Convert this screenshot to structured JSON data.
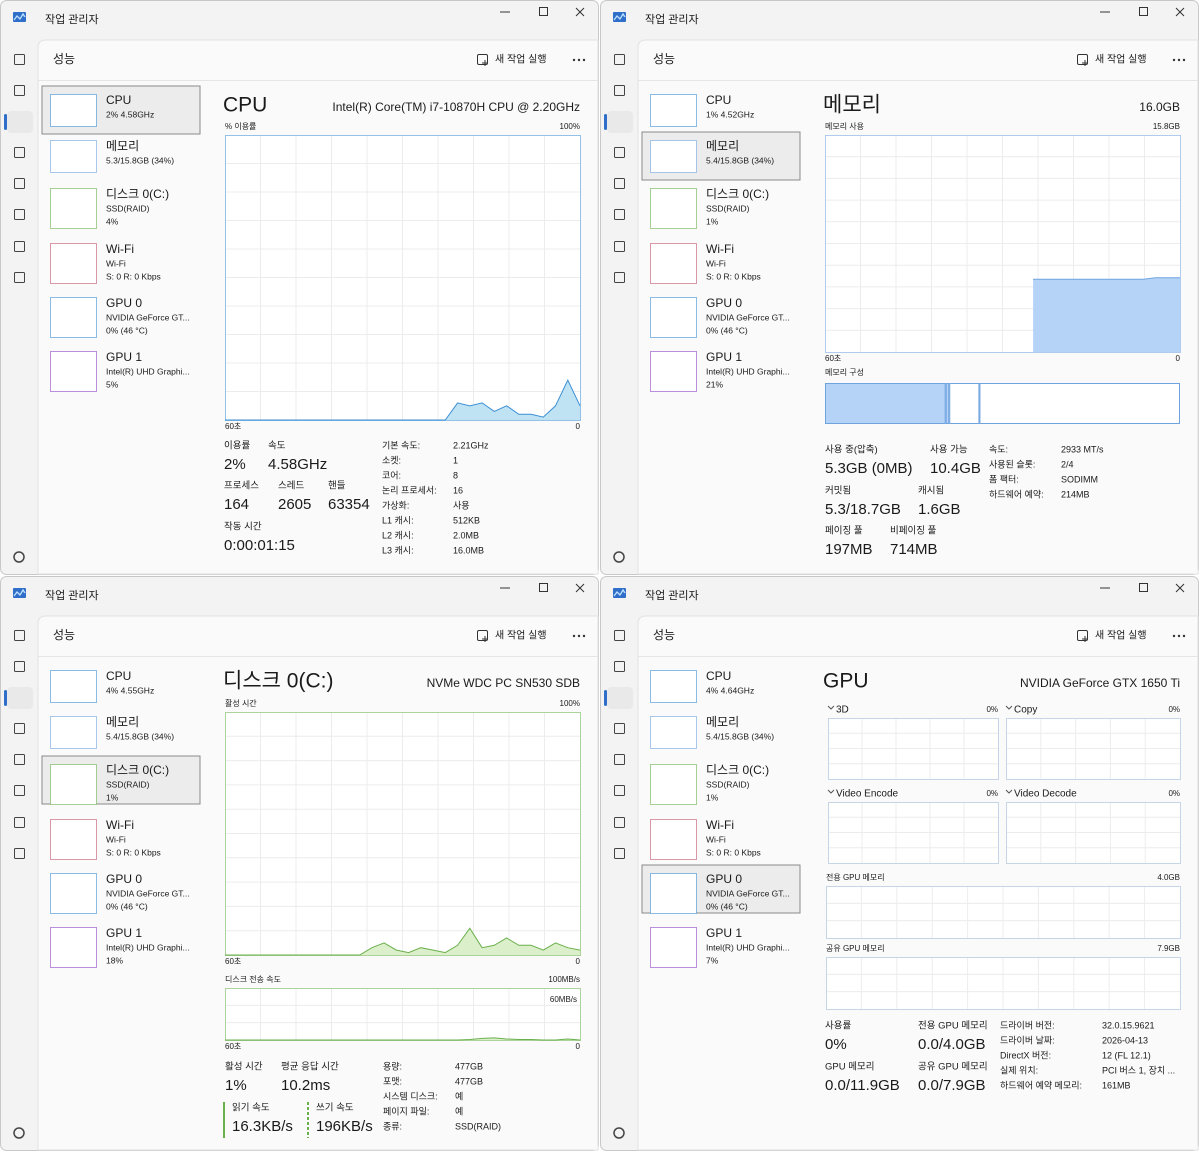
{
  "windows": [
    {
      "title": "작업 관리자",
      "section": "성능",
      "new_task": "새 작업 실행",
      "selected": 0,
      "sidebar": [
        {
          "name": "CPU",
          "lines": [
            "2% 4.58GHz"
          ],
          "color": "#3c8fd6"
        },
        {
          "name": "메모리",
          "lines": [
            "5.3/15.8GB (34%)"
          ],
          "color": "#6fa3e0"
        },
        {
          "name": "디스크 0(C:)",
          "lines": [
            "SSD(RAID)",
            "4%"
          ],
          "color": "#6ab04c"
        },
        {
          "name": "Wi-Fi",
          "lines": [
            "Wi-Fi",
            "S: 0 R: 0 Kbps"
          ],
          "color": "#c0546e"
        },
        {
          "name": "GPU 0",
          "lines": [
            "NVIDIA GeForce GT...",
            "0% (46 °C)"
          ],
          "color": "#3c8fd6"
        },
        {
          "name": "GPU 1",
          "lines": [
            "Intel(R) UHD Graphi...",
            "5%"
          ],
          "color": "#8e44c8"
        }
      ],
      "main": {
        "type": "cpu",
        "heading": "CPU",
        "model": "Intel(R) Core(TM) i7-10870H CPU @ 2.20GHz",
        "graphs": [
          {
            "top_left": "% 이용률",
            "top_right": "100%",
            "bottom_left": "60초",
            "bottom_right": "0",
            "ylim": [
              0,
              100
            ],
            "color": "#3c8fd6",
            "fill": "#bfe3f3",
            "values": [
              0,
              0,
              0,
              0,
              0,
              0,
              0,
              0,
              0,
              0,
              0,
              0,
              0,
              0,
              0,
              0,
              0,
              0,
              0,
              6,
              5,
              6,
              3,
              5,
              2,
              2,
              1,
              5,
              14,
              5
            ]
          }
        ],
        "stats": [
          {
            "label": "이용률",
            "value": "2%"
          },
          {
            "label": "속도",
            "value": "4.58GHz"
          },
          {
            "label": "프로세스",
            "value": "164"
          },
          {
            "label": "스레드",
            "value": "2605"
          },
          {
            "label": "핸들",
            "value": "63354"
          },
          {
            "label": "작동 시간",
            "value": "0:00:01:15"
          }
        ],
        "details": [
          {
            "label": "기본 속도:",
            "value": "2.21GHz"
          },
          {
            "label": "소켓:",
            "value": "1"
          },
          {
            "label": "코어:",
            "value": "8"
          },
          {
            "label": "논리 프로세서:",
            "value": "16"
          },
          {
            "label": "가상화:",
            "value": "사용"
          },
          {
            "label": "L1 캐시:",
            "value": "512KB"
          },
          {
            "label": "L2 캐시:",
            "value": "2.0MB"
          },
          {
            "label": "L3 캐시:",
            "value": "16.0MB"
          }
        ]
      }
    },
    {
      "title": "작업 관리자",
      "section": "성능",
      "new_task": "새 작업 실행",
      "selected": 1,
      "sidebar": [
        {
          "name": "CPU",
          "lines": [
            "1% 4.52GHz"
          ],
          "color": "#3c8fd6"
        },
        {
          "name": "메모리",
          "lines": [
            "5.4/15.8GB (34%)"
          ],
          "color": "#6fa3e0"
        },
        {
          "name": "디스크 0(C:)",
          "lines": [
            "SSD(RAID)",
            "1%"
          ],
          "color": "#6ab04c"
        },
        {
          "name": "Wi-Fi",
          "lines": [
            "Wi-Fi",
            "S: 0 R: 0 Kbps"
          ],
          "color": "#c0546e"
        },
        {
          "name": "GPU 0",
          "lines": [
            "NVIDIA GeForce GT...",
            "0% (46 °C)"
          ],
          "color": "#3c8fd6"
        },
        {
          "name": "GPU 1",
          "lines": [
            "Intel(R) UHD Graphi...",
            "21%"
          ],
          "color": "#8e44c8"
        }
      ],
      "main": {
        "type": "memory",
        "heading": "메모리",
        "model": "16.0GB",
        "graphs": [
          {
            "top_left": "메모리 사용",
            "top_right": "15.8GB",
            "bottom_left": "60초",
            "bottom_right": "0",
            "ylim": [
              0,
              15.8
            ],
            "color": "#6fa3e0",
            "fill": "#b5d3f7",
            "values": [
              null,
              null,
              null,
              null,
              null,
              null,
              null,
              null,
              null,
              null,
              null,
              null,
              null,
              null,
              null,
              null,
              null,
              5.3,
              5.3,
              5.3,
              5.3,
              5.3,
              5.3,
              5.3,
              5.3,
              5.3,
              5.3,
              5.4,
              5.4,
              5.4
            ]
          }
        ],
        "composition_label": "메모리 구성",
        "composition": [
          {
            "value": 34,
            "color": "#b5d3f7"
          },
          {
            "value": 1,
            "color": "#b5d3f7"
          },
          {
            "value": 8.5,
            "color": "#ffffff"
          },
          {
            "value": 56.5,
            "color": "#ffffff"
          }
        ],
        "stats": [
          {
            "label": "사용 중(압축)",
            "value": "5.3GB (0MB)"
          },
          {
            "label": "사용 가능",
            "value": "10.4GB"
          },
          {
            "label": "커밋됨",
            "value": "5.3/18.7GB"
          },
          {
            "label": "캐시됨",
            "value": "1.6GB"
          },
          {
            "label": "페이징 풀",
            "value": "197MB"
          },
          {
            "label": "비페이징 풀",
            "value": "714MB"
          }
        ],
        "details": [
          {
            "label": "속도:",
            "value": "2933 MT/s"
          },
          {
            "label": "사용된 슬롯:",
            "value": "2/4"
          },
          {
            "label": "폼 팩터:",
            "value": "SODIMM"
          },
          {
            "label": "하드웨어 예약:",
            "value": "214MB"
          }
        ]
      }
    },
    {
      "title": "작업 관리자",
      "section": "성능",
      "new_task": "새 작업 실행",
      "selected": 2,
      "sidebar": [
        {
          "name": "CPU",
          "lines": [
            "4% 4.55GHz"
          ],
          "color": "#3c8fd6"
        },
        {
          "name": "메모리",
          "lines": [
            "5.4/15.8GB (34%)"
          ],
          "color": "#6fa3e0"
        },
        {
          "name": "디스크 0(C:)",
          "lines": [
            "SSD(RAID)",
            "1%"
          ],
          "color": "#6ab04c"
        },
        {
          "name": "Wi-Fi",
          "lines": [
            "Wi-Fi",
            "S: 0 R: 0 Kbps"
          ],
          "color": "#c0546e"
        },
        {
          "name": "GPU 0",
          "lines": [
            "NVIDIA GeForce GT...",
            "0% (46 °C)"
          ],
          "color": "#3c8fd6"
        },
        {
          "name": "GPU 1",
          "lines": [
            "Intel(R) UHD Graphi...",
            "18%"
          ],
          "color": "#8e44c8"
        }
      ],
      "main": {
        "type": "disk",
        "heading": "디스크 0(C:)",
        "model": "NVMe WDC PC SN530 SDB",
        "graphs": [
          {
            "top_left": "활성 시간",
            "top_right": "100%",
            "bottom_left": "60초",
            "bottom_right": "0",
            "ylim": [
              0,
              100
            ],
            "color": "#6ab04c",
            "fill": "#dcefcb",
            "values": [
              0,
              0,
              0,
              0,
              0,
              0,
              0,
              0,
              0,
              0,
              0,
              0,
              3,
              5,
              2,
              1,
              3,
              2,
              1,
              4,
              11,
              3,
              4,
              7,
              4,
              4,
              2,
              5,
              3,
              2
            ]
          },
          {
            "top_left": "디스크 전송 속도",
            "top_right": "100MB/s",
            "inner_label": "60MB/s",
            "bottom_left": "60초",
            "bottom_right": "0",
            "ylim": [
              0,
              100
            ],
            "color": "#6ab04c",
            "fill": "#dcefcb",
            "values": [
              0,
              0,
              0,
              0,
              0,
              0,
              0,
              0,
              0,
              0,
              0,
              0,
              0,
              0,
              0,
              0,
              0,
              0,
              0,
              0,
              1,
              3,
              4,
              2,
              1,
              1,
              0,
              0,
              2,
              0
            ]
          }
        ],
        "stats": [
          {
            "label": "활성 시간",
            "value": "1%"
          },
          {
            "label": "평균 응답 시간",
            "value": "10.2ms"
          },
          {
            "label": "읽기 속도",
            "value": "16.3KB/s"
          },
          {
            "label": "쓰기 속도",
            "value": "196KB/s"
          }
        ],
        "details": [
          {
            "label": "용량:",
            "value": "477GB"
          },
          {
            "label": "포맷:",
            "value": "477GB"
          },
          {
            "label": "시스템 디스크:",
            "value": "예"
          },
          {
            "label": "페이지 파일:",
            "value": "예"
          },
          {
            "label": "종류:",
            "value": "SSD(RAID)"
          }
        ]
      }
    },
    {
      "title": "작업 관리자",
      "section": "성능",
      "new_task": "새 작업 실행",
      "selected": 4,
      "sidebar": [
        {
          "name": "CPU",
          "lines": [
            "4% 4.64GHz"
          ],
          "color": "#3c8fd6"
        },
        {
          "name": "메모리",
          "lines": [
            "5.4/15.8GB (34%)"
          ],
          "color": "#6fa3e0"
        },
        {
          "name": "디스크 0(C:)",
          "lines": [
            "SSD(RAID)",
            "1%"
          ],
          "color": "#6ab04c"
        },
        {
          "name": "Wi-Fi",
          "lines": [
            "Wi-Fi",
            "S: 0 R: 0 Kbps"
          ],
          "color": "#c0546e"
        },
        {
          "name": "GPU 0",
          "lines": [
            "NVIDIA GeForce GT...",
            "0% (46 °C)"
          ],
          "color": "#3c8fd6"
        },
        {
          "name": "GPU 1",
          "lines": [
            "Intel(R) UHD Graphi...",
            "7%"
          ],
          "color": "#8e44c8"
        }
      ],
      "main": {
        "type": "gpu",
        "heading": "GPU",
        "model": "NVIDIA GeForce GTX 1650 Ti",
        "graphs": [
          {
            "top_left": "3D",
            "top_right": "0%",
            "color": "#9ab6d6"
          },
          {
            "top_left": "Copy",
            "top_right": "0%",
            "color": "#9ab6d6"
          },
          {
            "top_left": "Video Encode",
            "top_right": "0%",
            "color": "#9ab6d6"
          },
          {
            "top_left": "Video Decode",
            "top_right": "0%",
            "color": "#9ab6d6"
          },
          {
            "top_left": "전용 GPU 메모리",
            "top_right": "4.0GB",
            "color": "#9ab6d6"
          },
          {
            "top_left": "공유 GPU 메모리",
            "top_right": "7.9GB",
            "color": "#9ab6d6"
          }
        ],
        "stats": [
          {
            "label": "사용률",
            "value": "0%"
          },
          {
            "label": "전용 GPU 메모리",
            "value": "0.0/4.0GB"
          },
          {
            "label": "GPU 메모리",
            "value": "0.0/11.9GB"
          },
          {
            "label": "공유 GPU 메모리",
            "value": "0.0/7.9GB"
          }
        ],
        "details": [
          {
            "label": "드라이버 버전:",
            "value": "32.0.15.9621"
          },
          {
            "label": "드라이버 날짜:",
            "value": "2026-04-13"
          },
          {
            "label": "DirectX 버전:",
            "value": "12 (FL 12.1)"
          },
          {
            "label": "실제 위치:",
            "value": "PCI 버스 1, 장치 ..."
          },
          {
            "label": "하드웨어 예약 메모리:",
            "value": "161MB"
          }
        ]
      }
    }
  ]
}
